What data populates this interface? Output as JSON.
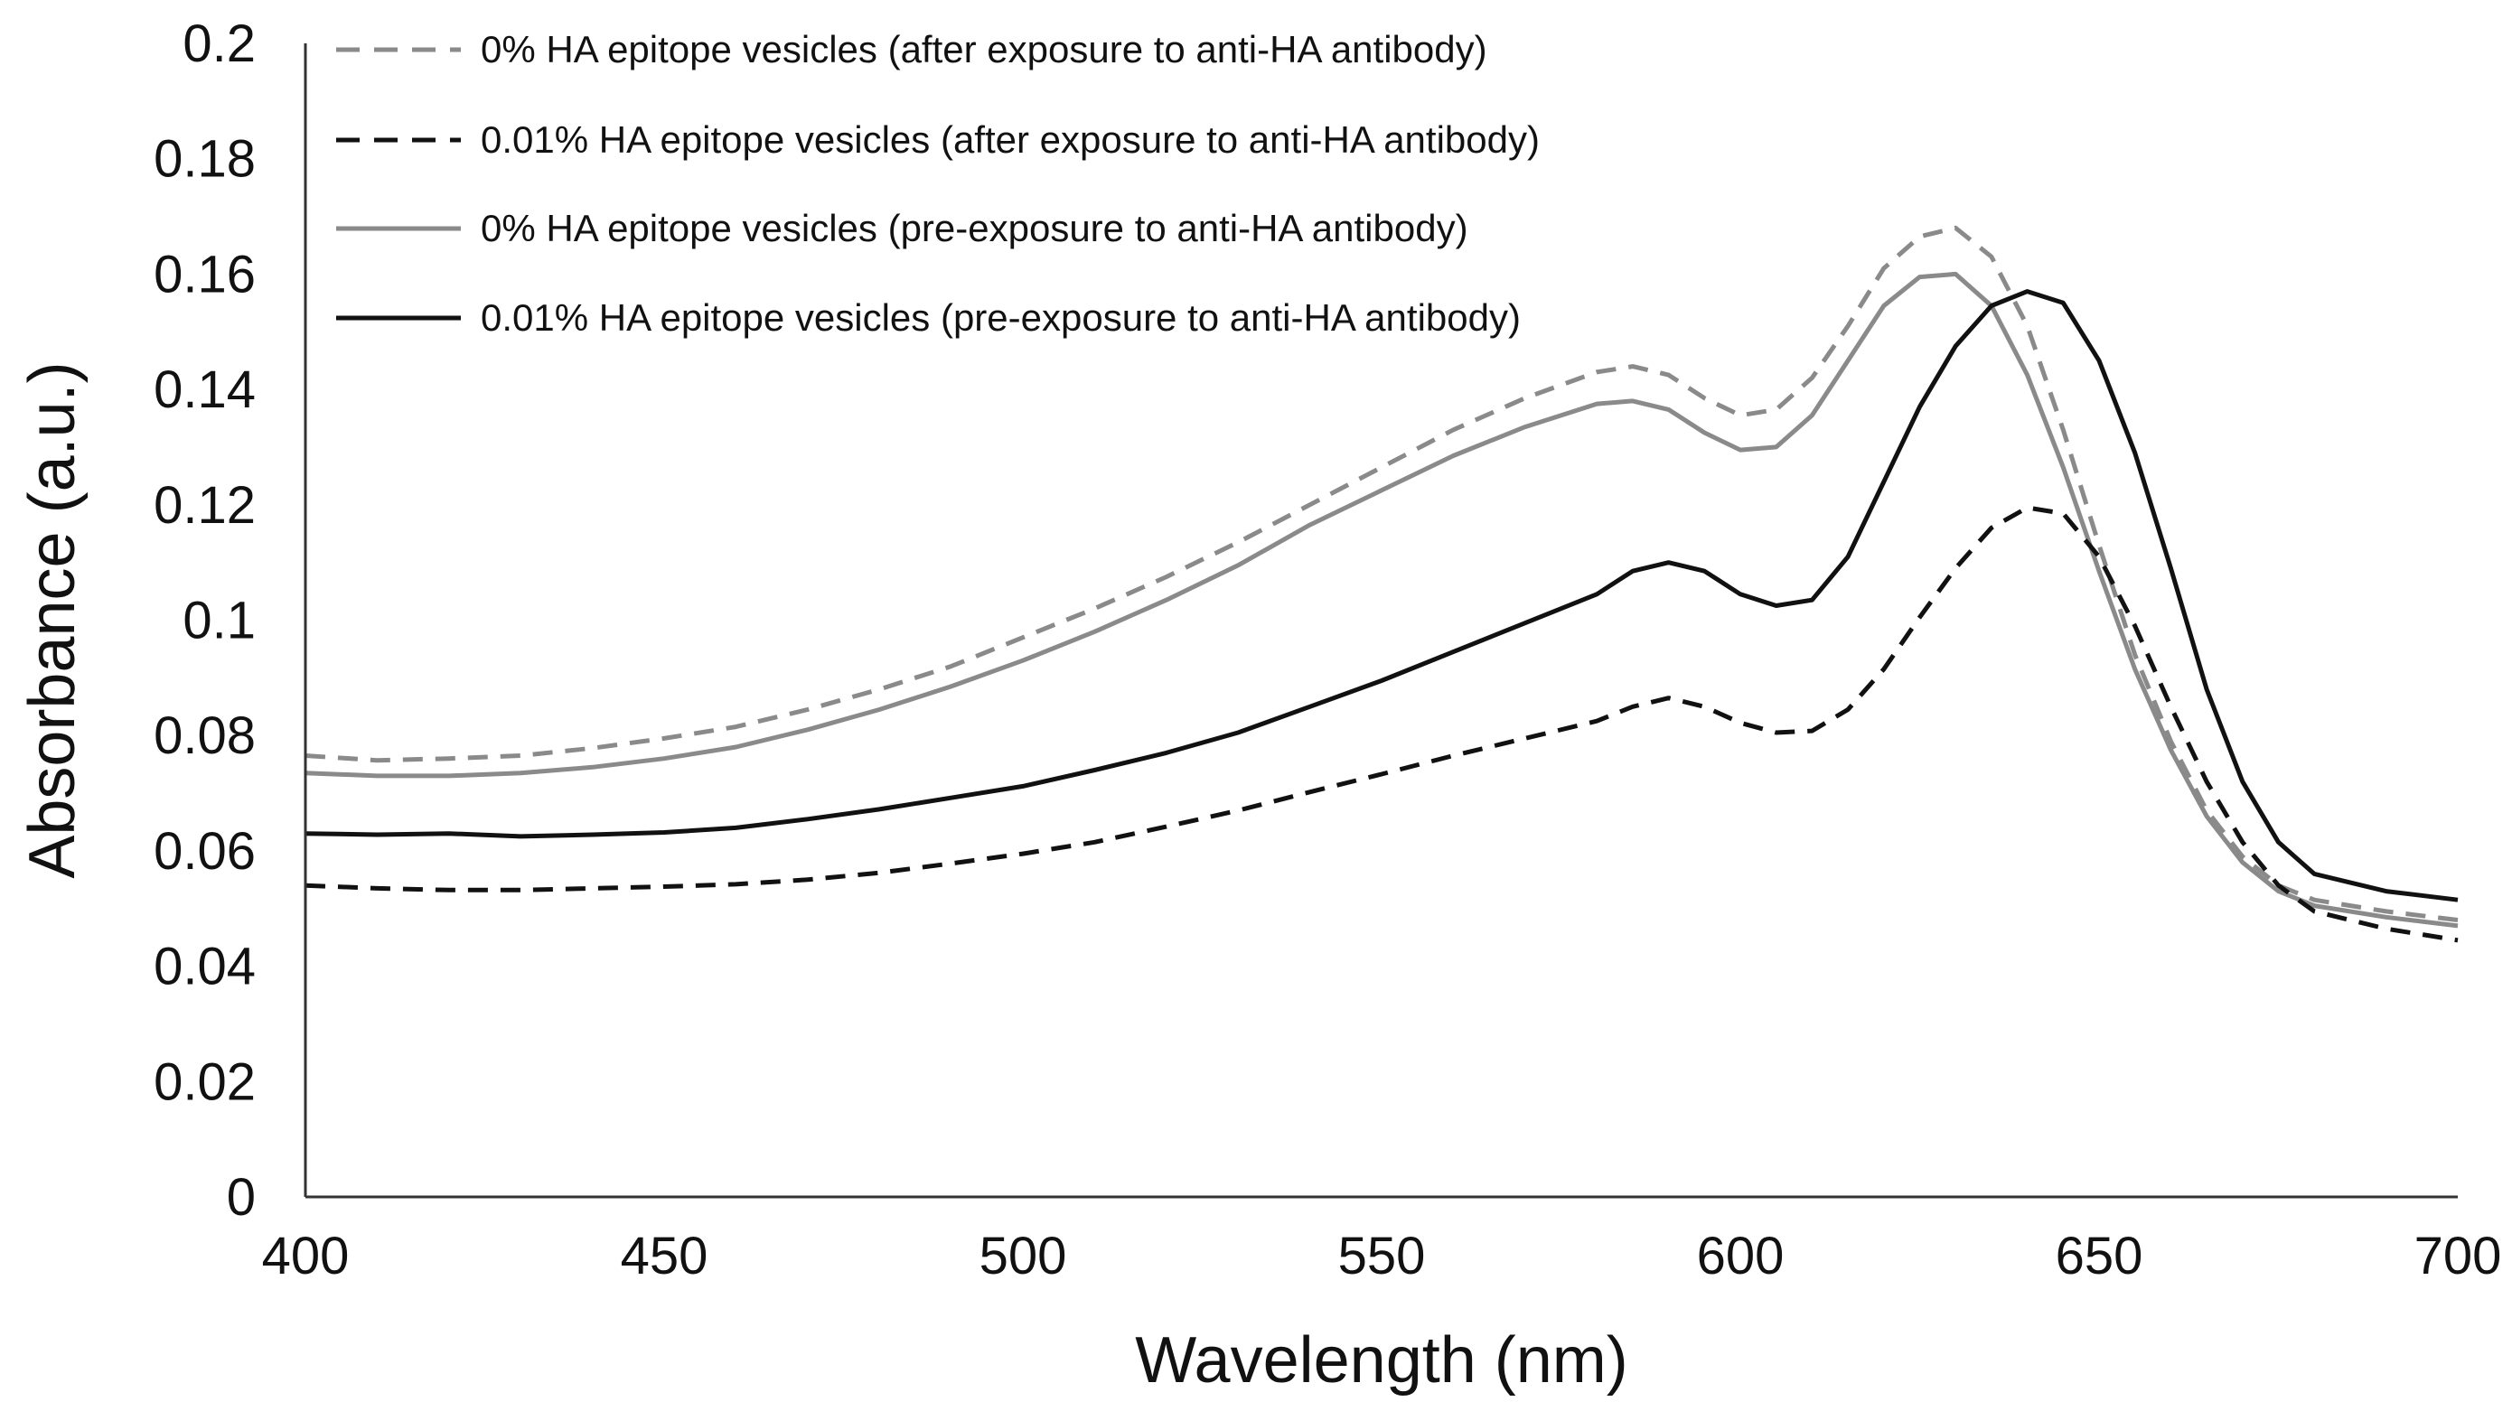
{
  "chart_data": {
    "type": "line",
    "title": "",
    "xlabel": "Wavelength (nm)",
    "ylabel": "Absorbance (a.u.)",
    "xlim": [
      400,
      700
    ],
    "ylim": [
      0,
      0.2
    ],
    "grid": false,
    "legend_position": "top-left",
    "x_ticks": [
      {
        "value": 400,
        "label": "400"
      },
      {
        "value": 450,
        "label": "450"
      },
      {
        "value": 500,
        "label": "500"
      },
      {
        "value": 550,
        "label": "550"
      },
      {
        "value": 600,
        "label": "600"
      },
      {
        "value": 650,
        "label": "650"
      },
      {
        "value": 700,
        "label": "700"
      }
    ],
    "y_ticks": [
      {
        "value": 0,
        "label": "0"
      },
      {
        "value": 0.02,
        "label": "0.02"
      },
      {
        "value": 0.04,
        "label": "0.04"
      },
      {
        "value": 0.06,
        "label": "0.06"
      },
      {
        "value": 0.08,
        "label": "0.08"
      },
      {
        "value": 0.1,
        "label": "0.1"
      },
      {
        "value": 0.12,
        "label": "0.12"
      },
      {
        "value": 0.14,
        "label": "0.14"
      },
      {
        "value": 0.16,
        "label": "0.16"
      },
      {
        "value": 0.18,
        "label": "0.18"
      },
      {
        "value": 0.2,
        "label": "0.2"
      }
    ],
    "series": [
      {
        "name": "0% HA epitope vesicles (after exposure to anti-HA antibody)",
        "color": "#8a8a8a",
        "dash": "dashed",
        "points": [
          [
            400,
            0.0765
          ],
          [
            410,
            0.0757
          ],
          [
            420,
            0.076
          ],
          [
            430,
            0.0765
          ],
          [
            440,
            0.0778
          ],
          [
            450,
            0.0795
          ],
          [
            460,
            0.0815
          ],
          [
            470,
            0.0845
          ],
          [
            480,
            0.088
          ],
          [
            490,
            0.092
          ],
          [
            500,
            0.097
          ],
          [
            510,
            0.102
          ],
          [
            520,
            0.1075
          ],
          [
            530,
            0.1135
          ],
          [
            540,
            0.12
          ],
          [
            550,
            0.1265
          ],
          [
            560,
            0.133
          ],
          [
            570,
            0.1385
          ],
          [
            580,
            0.143
          ],
          [
            585,
            0.144
          ],
          [
            590,
            0.1425
          ],
          [
            595,
            0.1385
          ],
          [
            600,
            0.1355
          ],
          [
            605,
            0.1365
          ],
          [
            610,
            0.142
          ],
          [
            615,
            0.151
          ],
          [
            620,
            0.161
          ],
          [
            625,
            0.1665
          ],
          [
            630,
            0.168
          ],
          [
            635,
            0.163
          ],
          [
            640,
            0.151
          ],
          [
            645,
            0.133
          ],
          [
            650,
            0.113
          ],
          [
            655,
            0.094
          ],
          [
            660,
            0.079
          ],
          [
            665,
            0.067
          ],
          [
            670,
            0.059
          ],
          [
            675,
            0.054
          ],
          [
            680,
            0.0515
          ],
          [
            690,
            0.0495
          ],
          [
            700,
            0.048
          ]
        ]
      },
      {
        "name": "0.01% HA epitope vesicles (after exposure to anti-HA antibody)",
        "color": "#111111",
        "dash": "dashed",
        "points": [
          [
            400,
            0.054
          ],
          [
            410,
            0.0535
          ],
          [
            420,
            0.0532
          ],
          [
            430,
            0.0532
          ],
          [
            440,
            0.0535
          ],
          [
            450,
            0.0538
          ],
          [
            460,
            0.0542
          ],
          [
            470,
            0.055
          ],
          [
            480,
            0.0562
          ],
          [
            490,
            0.0578
          ],
          [
            500,
            0.0595
          ],
          [
            510,
            0.0615
          ],
          [
            520,
            0.0642
          ],
          [
            530,
            0.067
          ],
          [
            540,
            0.0702
          ],
          [
            550,
            0.0733
          ],
          [
            560,
            0.0765
          ],
          [
            570,
            0.0795
          ],
          [
            580,
            0.0825
          ],
          [
            585,
            0.085
          ],
          [
            590,
            0.0865
          ],
          [
            595,
            0.085
          ],
          [
            600,
            0.0822
          ],
          [
            605,
            0.0805
          ],
          [
            610,
            0.0808
          ],
          [
            615,
            0.0845
          ],
          [
            620,
            0.0915
          ],
          [
            625,
            0.1005
          ],
          [
            630,
            0.109
          ],
          [
            635,
            0.116
          ],
          [
            640,
            0.1195
          ],
          [
            645,
            0.1185
          ],
          [
            650,
            0.111
          ],
          [
            655,
            0.099
          ],
          [
            660,
            0.085
          ],
          [
            665,
            0.072
          ],
          [
            670,
            0.0615
          ],
          [
            675,
            0.054
          ],
          [
            680,
            0.0495
          ],
          [
            690,
            0.0465
          ],
          [
            700,
            0.0445
          ]
        ]
      },
      {
        "name": "0% HA epitope vesicles (pre-exposure to anti-HA antibody)",
        "color": "#8a8a8a",
        "dash": "solid",
        "points": [
          [
            400,
            0.0735
          ],
          [
            410,
            0.073
          ],
          [
            420,
            0.073
          ],
          [
            430,
            0.0735
          ],
          [
            440,
            0.0745
          ],
          [
            450,
            0.076
          ],
          [
            460,
            0.078
          ],
          [
            470,
            0.081
          ],
          [
            480,
            0.0845
          ],
          [
            490,
            0.0885
          ],
          [
            500,
            0.093
          ],
          [
            510,
            0.098
          ],
          [
            520,
            0.1035
          ],
          [
            530,
            0.1095
          ],
          [
            540,
            0.1165
          ],
          [
            550,
            0.1225
          ],
          [
            560,
            0.1285
          ],
          [
            570,
            0.1335
          ],
          [
            580,
            0.1375
          ],
          [
            585,
            0.138
          ],
          [
            590,
            0.1365
          ],
          [
            595,
            0.1325
          ],
          [
            600,
            0.1295
          ],
          [
            605,
            0.13
          ],
          [
            610,
            0.1355
          ],
          [
            615,
            0.145
          ],
          [
            620,
            0.1545
          ],
          [
            625,
            0.1595
          ],
          [
            630,
            0.16
          ],
          [
            635,
            0.1545
          ],
          [
            640,
            0.1425
          ],
          [
            645,
            0.1265
          ],
          [
            650,
            0.1085
          ],
          [
            655,
            0.0915
          ],
          [
            660,
            0.0775
          ],
          [
            665,
            0.066
          ],
          [
            670,
            0.058
          ],
          [
            675,
            0.053
          ],
          [
            680,
            0.0505
          ],
          [
            690,
            0.0485
          ],
          [
            700,
            0.047
          ]
        ]
      },
      {
        "name": "0.01% HA epitope vesicles (pre-exposure to anti-HA antibody)",
        "color": "#111111",
        "dash": "solid",
        "points": [
          [
            400,
            0.063
          ],
          [
            410,
            0.0628
          ],
          [
            420,
            0.063
          ],
          [
            430,
            0.0625
          ],
          [
            440,
            0.0628
          ],
          [
            450,
            0.0632
          ],
          [
            460,
            0.064
          ],
          [
            470,
            0.0655
          ],
          [
            480,
            0.0672
          ],
          [
            490,
            0.0692
          ],
          [
            500,
            0.0712
          ],
          [
            510,
            0.074
          ],
          [
            520,
            0.077
          ],
          [
            530,
            0.0805
          ],
          [
            540,
            0.085
          ],
          [
            550,
            0.0895
          ],
          [
            560,
            0.0945
          ],
          [
            570,
            0.0995
          ],
          [
            580,
            0.1045
          ],
          [
            585,
            0.1085
          ],
          [
            590,
            0.11
          ],
          [
            595,
            0.1085
          ],
          [
            600,
            0.1045
          ],
          [
            605,
            0.1025
          ],
          [
            610,
            0.1035
          ],
          [
            615,
            0.111
          ],
          [
            620,
            0.124
          ],
          [
            625,
            0.137
          ],
          [
            630,
            0.1475
          ],
          [
            635,
            0.1545
          ],
          [
            640,
            0.157
          ],
          [
            645,
            0.155
          ],
          [
            650,
            0.145
          ],
          [
            655,
            0.129
          ],
          [
            660,
            0.109
          ],
          [
            665,
            0.088
          ],
          [
            670,
            0.072
          ],
          [
            675,
            0.0615
          ],
          [
            680,
            0.056
          ],
          [
            690,
            0.053
          ],
          [
            700,
            0.0515
          ]
        ]
      }
    ]
  }
}
